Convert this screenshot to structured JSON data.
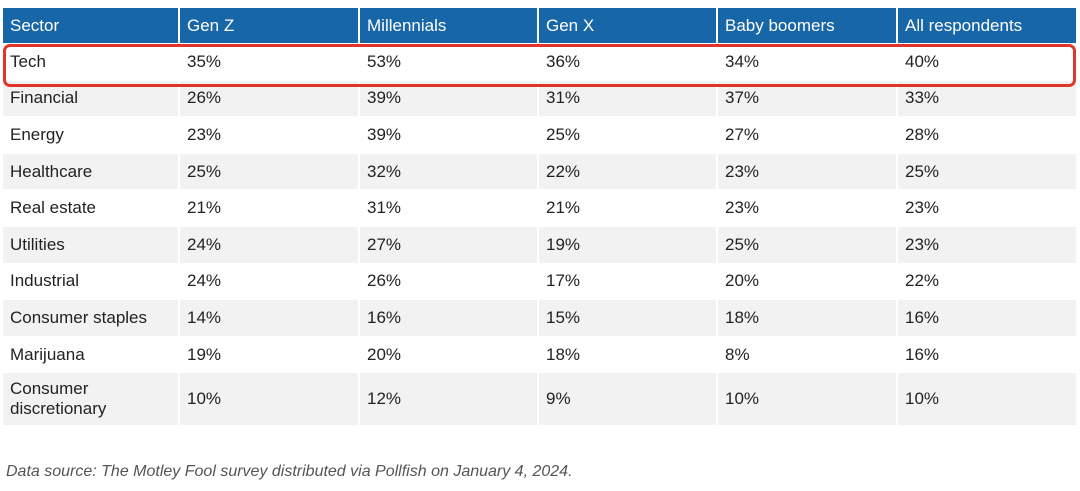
{
  "chart_data": {
    "type": "table",
    "columns": [
      "Sector",
      "Gen Z",
      "Millennials",
      "Gen X",
      "Baby boomers",
      "All respondents"
    ],
    "rows": [
      [
        "Tech",
        "35%",
        "53%",
        "36%",
        "34%",
        "40%"
      ],
      [
        "Financial",
        "26%",
        "39%",
        "31%",
        "37%",
        "33%"
      ],
      [
        "Energy",
        "23%",
        "39%",
        "25%",
        "27%",
        "28%"
      ],
      [
        "Healthcare",
        "25%",
        "32%",
        "22%",
        "23%",
        "25%"
      ],
      [
        "Real estate",
        "21%",
        "31%",
        "21%",
        "23%",
        "23%"
      ],
      [
        "Utilities",
        "24%",
        "27%",
        "19%",
        "25%",
        "23%"
      ],
      [
        "Industrial",
        "24%",
        "26%",
        "17%",
        "20%",
        "22%"
      ],
      [
        "Consumer staples",
        "14%",
        "16%",
        "15%",
        "18%",
        "16%"
      ],
      [
        "Marijuana",
        "19%",
        "20%",
        "18%",
        "8%",
        "16%"
      ],
      [
        "Consumer discretionary",
        "10%",
        "12%",
        "9%",
        "10%",
        "10%"
      ]
    ],
    "highlighted_row": "Tech",
    "source": "Data source: The Motley Fool survey distributed via Pollfish on January 4, 2024."
  },
  "colors": {
    "header_background": "#1766a8",
    "header_text": "#ffffff",
    "stripe": "#f2f2f2",
    "highlight_border": "#e0352b"
  }
}
